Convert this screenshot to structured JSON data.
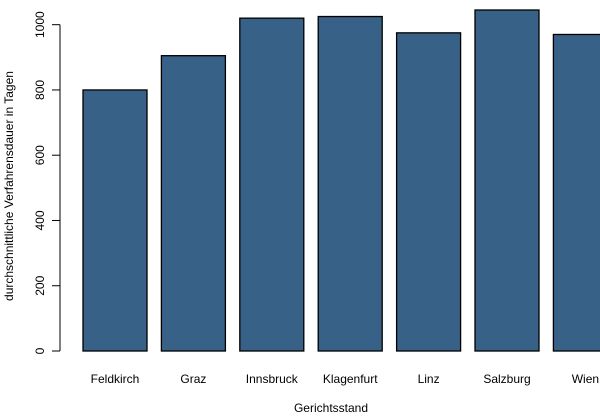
{
  "chart_data": {
    "type": "bar",
    "title": "",
    "xlabel": "Gerichtsstand",
    "ylabel": "durchschnittliche Verfahrensdauer in Tagen",
    "categories": [
      "Feldkirch",
      "Graz",
      "Innsbruck",
      "Klagenfurt",
      "Linz",
      "Salzburg",
      "Wien"
    ],
    "values": [
      800,
      905,
      1020,
      1025,
      975,
      1045,
      970
    ],
    "ylim": [
      0,
      1045
    ],
    "yticks": [
      0,
      200,
      400,
      600,
      800,
      1000
    ],
    "grid": false,
    "legend": "none",
    "bar_color": "#376187",
    "bar_edge_color": "#000000"
  }
}
